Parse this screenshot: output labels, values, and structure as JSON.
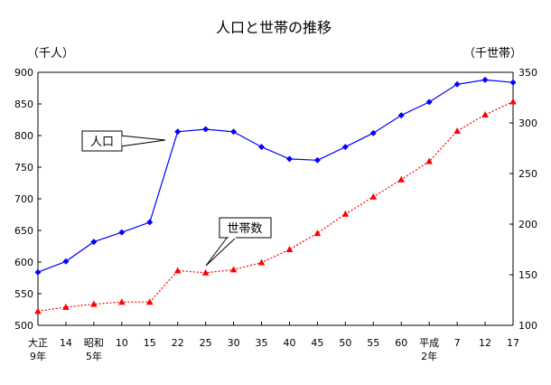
{
  "chart_data": {
    "type": "line",
    "title": "人口と世帯の推移",
    "left_axis": {
      "unit_label": "（千人）",
      "ylim": [
        500,
        900
      ],
      "ticks": [
        500,
        550,
        600,
        650,
        700,
        750,
        800,
        850,
        900
      ]
    },
    "right_axis": {
      "unit_label": "（千世帯）",
      "ylim": [
        100,
        350
      ],
      "ticks": [
        100,
        150,
        200,
        250,
        300,
        350
      ]
    },
    "categories": [
      [
        "大正",
        "9年"
      ],
      [
        "14"
      ],
      [
        "昭和",
        "5年"
      ],
      [
        "10"
      ],
      [
        "15"
      ],
      [
        "22"
      ],
      [
        "25"
      ],
      [
        "30"
      ],
      [
        "35"
      ],
      [
        "40"
      ],
      [
        "45"
      ],
      [
        "50"
      ],
      [
        "55"
      ],
      [
        "60"
      ],
      [
        "平成",
        "2年"
      ],
      [
        "7"
      ],
      [
        "12"
      ],
      [
        "17"
      ]
    ],
    "grid": false,
    "series": [
      {
        "name": "人口",
        "axis": "left",
        "color": "#0000ff",
        "line_style": "solid",
        "marker": "diamond",
        "values": [
          584,
          601,
          632,
          647,
          663,
          806,
          810,
          806,
          782,
          763,
          761,
          782,
          804,
          832,
          853,
          881,
          888,
          884
        ]
      },
      {
        "name": "世帯数",
        "axis": "right",
        "color": "#ff0000",
        "line_style": "dotted",
        "marker": "triangle",
        "values": [
          114,
          118,
          121,
          123,
          123,
          154,
          152,
          155,
          162,
          175,
          191,
          210,
          227,
          244,
          262,
          292,
          308,
          321
        ]
      }
    ],
    "annotations": [
      {
        "text": "人口",
        "series": "人口"
      },
      {
        "text": "世帯数",
        "series": "世帯数"
      }
    ]
  }
}
